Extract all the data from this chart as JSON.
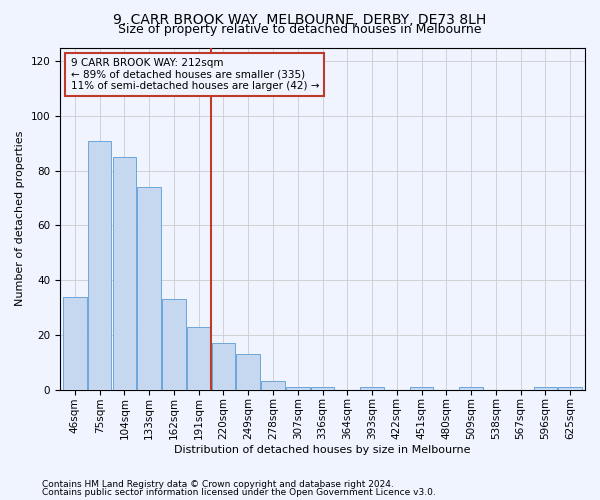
{
  "title": "9, CARR BROOK WAY, MELBOURNE, DERBY, DE73 8LH",
  "subtitle": "Size of property relative to detached houses in Melbourne",
  "xlabel": "Distribution of detached houses by size in Melbourne",
  "ylabel": "Number of detached properties",
  "footnote1": "Contains HM Land Registry data © Crown copyright and database right 2024.",
  "footnote2": "Contains public sector information licensed under the Open Government Licence v3.0.",
  "annotation_line1": "9 CARR BROOK WAY: 212sqm",
  "annotation_line2": "← 89% of detached houses are smaller (335)",
  "annotation_line3": "11% of semi-detached houses are larger (42) →",
  "categories": [
    "46sqm",
    "75sqm",
    "104sqm",
    "133sqm",
    "162sqm",
    "191sqm",
    "220sqm",
    "249sqm",
    "278sqm",
    "307sqm",
    "336sqm",
    "364sqm",
    "393sqm",
    "422sqm",
    "451sqm",
    "480sqm",
    "509sqm",
    "538sqm",
    "567sqm",
    "596sqm",
    "625sqm"
  ],
  "bar_heights": [
    34,
    91,
    85,
    74,
    33,
    23,
    17,
    13,
    3,
    1,
    1,
    0,
    1,
    0,
    1,
    0,
    1,
    0,
    0,
    1,
    1
  ],
  "bar_color": "#c5d8ef",
  "bar_edge_color": "#5b9bd5",
  "vline_color": "#c0392b",
  "annotation_box_color": "#c0392b",
  "background_color": "#f0f4ff",
  "ylim": [
    0,
    125
  ],
  "yticks": [
    0,
    20,
    40,
    60,
    80,
    100,
    120
  ],
  "grid_color": "#cccccc",
  "title_fontsize": 10,
  "subtitle_fontsize": 9,
  "label_fontsize": 8,
  "tick_fontsize": 7.5,
  "annotation_fontsize": 7.5,
  "footnote_fontsize": 6.5
}
